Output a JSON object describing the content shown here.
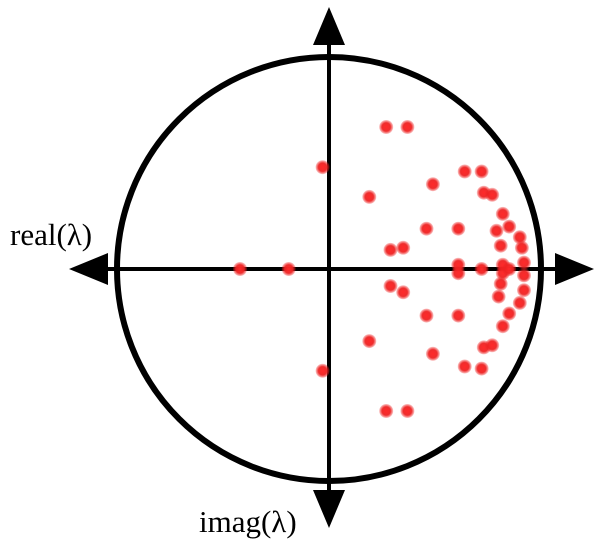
{
  "chart_data": {
    "type": "scatter",
    "title": "",
    "xlabel": "real(λ)",
    "ylabel": "imag(λ)",
    "xlim": [
      -1,
      1
    ],
    "ylim": [
      -1,
      1
    ],
    "unit_circle": true,
    "grid": false,
    "legend": "none",
    "colors": {
      "points": "#ee2222",
      "axes": "#000000",
      "circle": "#000000"
    },
    "points": [
      {
        "x": 0.27,
        "y": 0.67
      },
      {
        "x": 0.37,
        "y": 0.67
      },
      {
        "x": 0.27,
        "y": -0.67
      },
      {
        "x": 0.37,
        "y": -0.67
      },
      {
        "x": -0.03,
        "y": 0.48
      },
      {
        "x": -0.03,
        "y": -0.48
      },
      {
        "x": -0.42,
        "y": 0.0
      },
      {
        "x": -0.19,
        "y": 0.0
      },
      {
        "x": 0.19,
        "y": 0.34
      },
      {
        "x": 0.19,
        "y": -0.34
      },
      {
        "x": 0.29,
        "y": 0.09
      },
      {
        "x": 0.35,
        "y": 0.1
      },
      {
        "x": 0.29,
        "y": -0.08
      },
      {
        "x": 0.35,
        "y": -0.11
      },
      {
        "x": 0.49,
        "y": 0.4
      },
      {
        "x": 0.49,
        "y": -0.4
      },
      {
        "x": 0.46,
        "y": 0.19
      },
      {
        "x": 0.46,
        "y": -0.22
      },
      {
        "x": 0.61,
        "y": 0.19
      },
      {
        "x": 0.61,
        "y": -0.22
      },
      {
        "x": 0.61,
        "y": 0.02
      },
      {
        "x": 0.61,
        "y": -0.02
      },
      {
        "x": 0.64,
        "y": 0.46
      },
      {
        "x": 0.64,
        "y": -0.46
      },
      {
        "x": 0.72,
        "y": 0.46
      },
      {
        "x": 0.72,
        "y": -0.47
      },
      {
        "x": 0.73,
        "y": 0.36
      },
      {
        "x": 0.73,
        "y": -0.37
      },
      {
        "x": 0.77,
        "y": 0.35
      },
      {
        "x": 0.77,
        "y": -0.36
      },
      {
        "x": 0.82,
        "y": 0.26
      },
      {
        "x": 0.82,
        "y": -0.27
      },
      {
        "x": 0.85,
        "y": 0.2
      },
      {
        "x": 0.85,
        "y": -0.21
      },
      {
        "x": 0.79,
        "y": 0.18
      },
      {
        "x": 0.8,
        "y": -0.13
      },
      {
        "x": 0.81,
        "y": 0.11
      },
      {
        "x": 0.81,
        "y": -0.07
      },
      {
        "x": 0.82,
        "y": 0.02
      },
      {
        "x": 0.82,
        "y": -0.02
      },
      {
        "x": 0.72,
        "y": 0.0
      },
      {
        "x": 0.9,
        "y": 0.15
      },
      {
        "x": 0.9,
        "y": -0.16
      },
      {
        "x": 0.91,
        "y": 0.1
      },
      {
        "x": 0.92,
        "y": -0.1
      },
      {
        "x": 0.92,
        "y": 0.03
      },
      {
        "x": 0.92,
        "y": -0.03
      },
      {
        "x": 0.85,
        "y": 0.0
      }
    ]
  }
}
